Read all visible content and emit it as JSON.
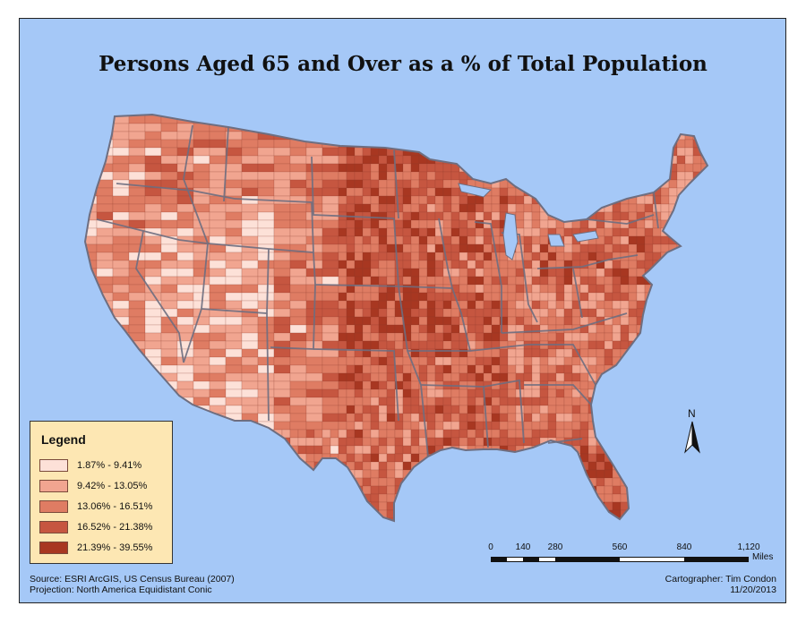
{
  "map": {
    "title": "Persons Aged 65 and Over as a % of Total Population",
    "legend": {
      "title": "Legend",
      "classes": [
        {
          "label": "1.87% - 9.41%",
          "color": "#fde1d8"
        },
        {
          "label": "9.42% - 13.05%",
          "color": "#f1a590"
        },
        {
          "label": "13.06% - 16.51%",
          "color": "#df7c63"
        },
        {
          "label": "16.52% - 21.38%",
          "color": "#c65640"
        },
        {
          "label": "21.39% - 39.55%",
          "color": "#a83721"
        }
      ]
    },
    "north_arrow": {
      "label": "N"
    },
    "scale_bar": {
      "ticks": [
        "0",
        "140",
        "280",
        "560",
        "840",
        "1,120"
      ],
      "unit": "Miles"
    },
    "source_line": "Source:  ESRI ArcGIS, US Census Bureau (2007)",
    "projection_line": "Projection:  North America Equidistant Conic",
    "cartographer_line": "Cartographer:  Tim Condon",
    "date_line": "11/20/2013",
    "colors": {
      "water": "#a5c8f7",
      "state_border": "#6e6e80",
      "county_border": "#8a3a2a"
    }
  }
}
